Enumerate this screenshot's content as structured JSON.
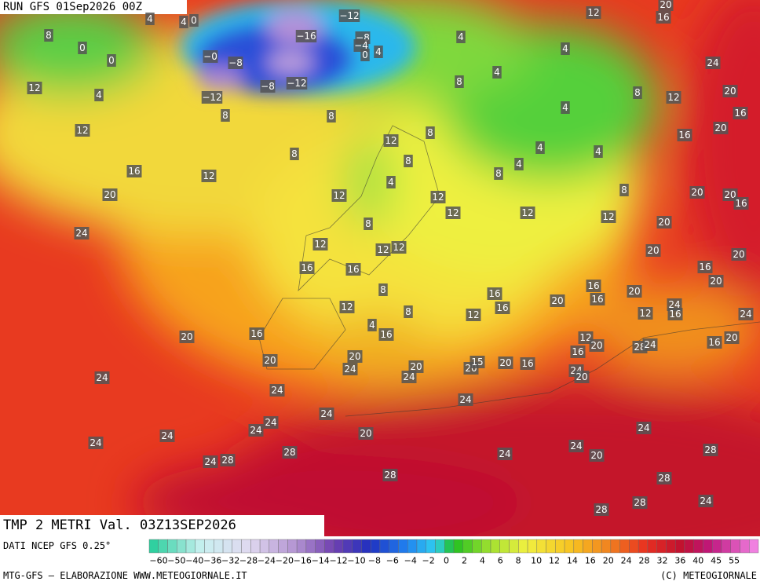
{
  "header": {
    "run": "RUN GFS 01Sep2026 00Z",
    "field": "TMP 2 METRI Val. 03Z13SEP2026"
  },
  "footer": {
    "source": "DATI NCEP GFS 0.25°",
    "credit": "MTG-GFS — ELABORAZIONE WWW.METEOGIORNALE.IT",
    "copyright": "(C) METEOGIORNALE"
  },
  "colorbar": {
    "labels": [
      "−60",
      "−50",
      "−40",
      "−36",
      "−32",
      "−28",
      "−24",
      "−20",
      "−16",
      "−14",
      "−12",
      "−10",
      "−8",
      "−6",
      "−4",
      "−2",
      "0",
      "2",
      "4",
      "6",
      "8",
      "10",
      "12",
      "14",
      "16",
      "20",
      "24",
      "28",
      "32",
      "36",
      "40",
      "45",
      "55"
    ]
  },
  "map_labels": [
    "8",
    "0",
    "0",
    "4",
    "4",
    "0",
    "−12",
    "−16",
    "−8",
    "−4",
    "−0",
    "−8",
    "−12",
    "−8",
    "−12",
    "0",
    "4",
    "4",
    "4",
    "12",
    "16",
    "20",
    "12",
    "4",
    "12",
    "8",
    "8",
    "8",
    "4",
    "4",
    "8",
    "12",
    "24",
    "20",
    "16",
    "20",
    "16",
    "12",
    "8",
    "8",
    "16",
    "12",
    "20",
    "24",
    "12",
    "8",
    "4",
    "4",
    "4",
    "4",
    "8",
    "8",
    "20",
    "20",
    "16",
    "12",
    "12",
    "12",
    "12",
    "20",
    "8",
    "12",
    "12",
    "12",
    "16",
    "16",
    "20",
    "20",
    "16",
    "20",
    "8",
    "16",
    "16",
    "20",
    "16",
    "20",
    "24",
    "16",
    "12",
    "24",
    "12",
    "8",
    "16",
    "12",
    "4",
    "16",
    "16",
    "20",
    "12",
    "20",
    "28",
    "24",
    "16",
    "20",
    "16",
    "20",
    "20",
    "24",
    "20",
    "20",
    "15",
    "20",
    "16",
    "24",
    "20",
    "24",
    "24",
    "24",
    "24",
    "24",
    "24",
    "24",
    "24",
    "24",
    "20",
    "24",
    "28",
    "24",
    "24",
    "20",
    "28",
    "24",
    "28",
    "28",
    "28",
    "24",
    "28",
    "28"
  ]
}
